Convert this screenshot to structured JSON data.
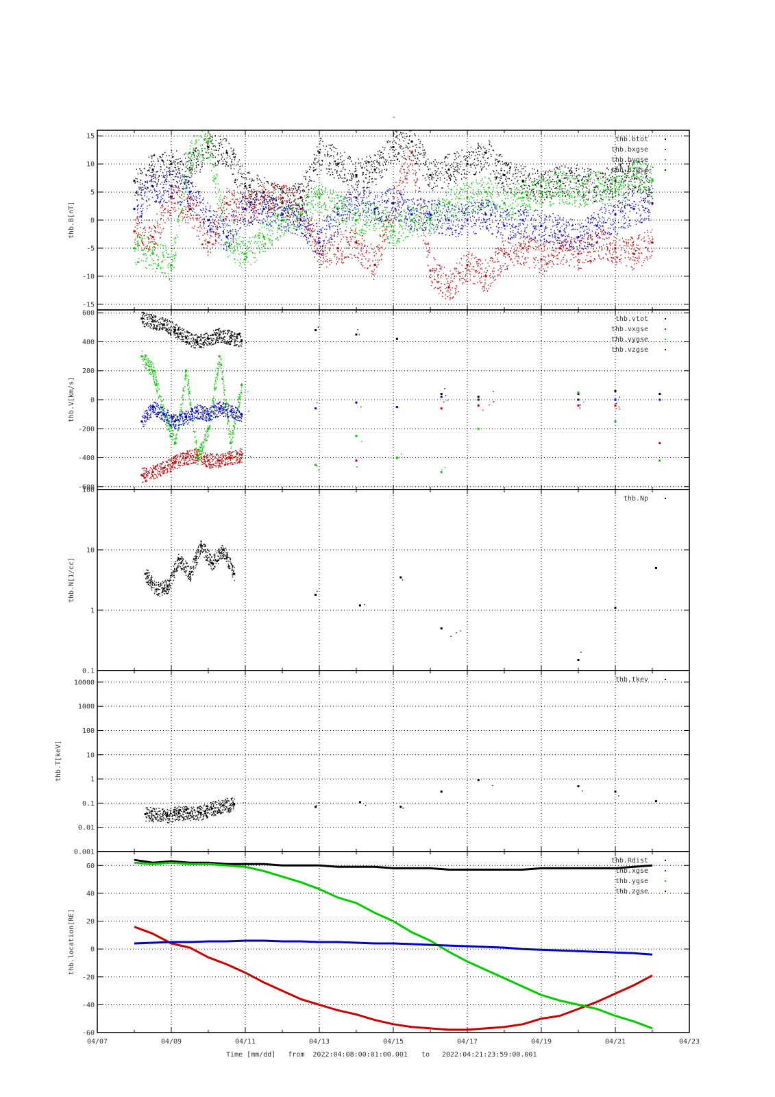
{
  "figure": {
    "title": "-",
    "time_axis": {
      "label": "Time [mm/dd]",
      "from_label": "from",
      "from": "2022:04:08:00:01:00.001",
      "to_label": "to",
      "to": "2022:04:21:23:59:00.001",
      "tick_labels": [
        "04/07",
        "04/09",
        "04/11",
        "04/13",
        "04/15",
        "04/17",
        "04/19",
        "04/21",
        "04/23"
      ]
    }
  },
  "chart_data": [
    {
      "id": "B",
      "type": "scatter",
      "ylabel": "thb.B[nT]",
      "ylim": [
        -16,
        16
      ],
      "yscale": "linear",
      "yticks": [
        -15,
        -10,
        -5,
        0,
        5,
        10,
        15
      ],
      "grid": true,
      "legend": "top-right",
      "x": [
        "04/08",
        "04/08.5",
        "04/09",
        "04/09.5",
        "04/10",
        "04/10.5",
        "04/11",
        "04/11.5",
        "04/12",
        "04/12.5",
        "04/13",
        "04/13.5",
        "04/14",
        "04/14.5",
        "04/15",
        "04/15.5",
        "04/16",
        "04/16.5",
        "04/17",
        "04/17.5",
        "04/18",
        "04/18.5",
        "04/19",
        "04/19.5",
        "04/20",
        "04/20.5",
        "04/21",
        "04/21.5",
        "04/22"
      ],
      "series": [
        {
          "name": "thb.btot",
          "color": "#000000",
          "values": [
            7,
            9,
            10,
            9,
            13,
            12,
            6,
            5,
            3,
            4,
            12,
            10,
            8,
            9,
            13,
            14,
            8,
            9,
            10,
            12,
            8,
            7,
            6,
            7,
            7,
            6,
            7,
            8,
            7
          ]
        },
        {
          "name": "thb.bxgse",
          "color": "#cc0000",
          "values": [
            -2,
            -3,
            4,
            2,
            -4,
            3,
            2,
            4,
            4,
            2,
            -6,
            -5,
            -4,
            -8,
            3,
            12,
            -9,
            -12,
            -8,
            -10,
            -6,
            -5,
            -7,
            -5,
            -6,
            -4,
            -5,
            -6,
            -4
          ]
        },
        {
          "name": "thb.bygse",
          "color": "#00cc00",
          "values": [
            -5,
            -6,
            -8,
            12,
            14,
            -4,
            -6,
            -3,
            0,
            1,
            4,
            2,
            0,
            1,
            -2,
            0,
            0,
            3,
            4,
            5,
            3,
            4,
            5,
            6,
            5,
            6,
            5,
            8,
            7
          ]
        },
        {
          "name": "thb.bzgse",
          "color": "#0000cc",
          "values": [
            2,
            6,
            6,
            5,
            0,
            -3,
            2,
            2,
            1,
            0,
            -4,
            1,
            4,
            2,
            3,
            1,
            1,
            0,
            0,
            1,
            -1,
            0,
            -1,
            -2,
            -3,
            -1,
            1,
            2,
            3
          ]
        }
      ]
    },
    {
      "id": "V",
      "type": "scatter",
      "ylabel": "thb.V[km/s]",
      "ylim": [
        -620,
        620
      ],
      "yscale": "linear",
      "yticks": [
        -600,
        -400,
        -200,
        0,
        200,
        400,
        600
      ],
      "grid": true,
      "legend": "top-right",
      "x": [
        "04/08.2",
        "04/08.5",
        "04/08.8",
        "04/09.1",
        "04/09.4",
        "04/09.7",
        "04/10",
        "04/10.3",
        "04/10.6",
        "04/10.9",
        "04/12.9",
        "04/14.0",
        "04/15.1",
        "04/16.3",
        "04/17.3",
        "04/20.0",
        "04/21.0",
        "04/22.2"
      ],
      "series": [
        {
          "name": "thb.vtot",
          "color": "#000000",
          "values": [
            560,
            540,
            520,
            480,
            430,
            400,
            420,
            450,
            430,
            410,
            480,
            450,
            420,
            40,
            20,
            40,
            60,
            40
          ]
        },
        {
          "name": "thb.vxgse",
          "color": "#cc0000",
          "values": [
            -520,
            -500,
            -470,
            -430,
            -400,
            -380,
            -420,
            -420,
            -400,
            -380,
            -450,
            -420,
            -400,
            -60,
            -40,
            -40,
            -40,
            -300
          ]
        },
        {
          "name": "thb.vygse",
          "color": "#00cc00",
          "values": [
            300,
            200,
            -100,
            -300,
            200,
            -400,
            -200,
            300,
            -300,
            100,
            -450,
            -250,
            -400,
            -500,
            -200,
            50,
            -150,
            -420
          ]
        },
        {
          "name": "thb.vzgse",
          "color": "#0000cc",
          "values": [
            -150,
            -50,
            -100,
            -150,
            -120,
            -80,
            -100,
            -60,
            -80,
            -100,
            -60,
            -20,
            -50,
            20,
            0,
            0,
            0,
            0
          ]
        }
      ]
    },
    {
      "id": "N",
      "type": "scatter",
      "ylabel": "thb.N[1/cc]",
      "ylim": [
        0.1,
        100
      ],
      "yscale": "log",
      "yticks": [
        0.1,
        1,
        10,
        100
      ],
      "ytick_labels": [
        "0.1",
        "1",
        "10",
        "100"
      ],
      "grid": true,
      "legend": "top-right",
      "x": [
        "04/08.3",
        "04/08.6",
        "04/08.9",
        "04/09.2",
        "04/09.5",
        "04/09.8",
        "04/10.1",
        "04/10.4",
        "04/10.7",
        "04/12.9",
        "04/14.1",
        "04/15.2",
        "04/16.3",
        "04/20.0",
        "04/21.0",
        "04/22.1"
      ],
      "series": [
        {
          "name": "thb.Np",
          "color": "#000000",
          "values": [
            4,
            2.2,
            2.5,
            7,
            4,
            12,
            6,
            10,
            4,
            1.8,
            1.2,
            3.5,
            0.5,
            0.15,
            1.1,
            5
          ]
        }
      ]
    },
    {
      "id": "T",
      "type": "scatter",
      "ylabel": "thb.T[keV]",
      "ylim": [
        0.001,
        30000
      ],
      "yscale": "log",
      "yticks": [
        0.001,
        0.01,
        0.1,
        1,
        10,
        100,
        1000,
        10000
      ],
      "ytick_labels": [
        "0.001",
        "0.01",
        "0.1",
        "1",
        "10",
        "100",
        "1000",
        "10000"
      ],
      "grid": true,
      "legend": "top-right",
      "x": [
        "04/08.3",
        "04/08.6",
        "04/08.9",
        "04/09.2",
        "04/09.5",
        "04/09.8",
        "04/10.1",
        "04/10.4",
        "04/10.7",
        "04/12.9",
        "04/14.1",
        "04/15.2",
        "04/16.3",
        "04/17.3",
        "04/20.0",
        "04/21.0",
        "04/22.1"
      ],
      "series": [
        {
          "name": "thb.tkev",
          "color": "#000000",
          "values": [
            0.035,
            0.035,
            0.03,
            0.04,
            0.038,
            0.04,
            0.06,
            0.08,
            0.09,
            0.07,
            0.11,
            0.07,
            0.3,
            0.9,
            0.5,
            0.3,
            0.12
          ]
        }
      ]
    },
    {
      "id": "location",
      "type": "line",
      "ylabel": "thb.location[RE]",
      "ylim": [
        -60,
        70
      ],
      "yscale": "linear",
      "yticks": [
        -60,
        -40,
        -20,
        0,
        20,
        40,
        60
      ],
      "grid": true,
      "legend": "top-right",
      "x": [
        "04/08",
        "04/08.5",
        "04/09",
        "04/09.5",
        "04/10",
        "04/10.5",
        "04/11",
        "04/11.5",
        "04/12",
        "04/12.5",
        "04/13",
        "04/13.5",
        "04/14",
        "04/14.5",
        "04/15",
        "04/15.5",
        "04/16",
        "04/16.5",
        "04/17",
        "04/17.5",
        "04/18",
        "04/18.5",
        "04/19",
        "04/19.5",
        "04/20",
        "04/20.5",
        "04/21",
        "04/21.5",
        "04/22"
      ],
      "series": [
        {
          "name": "thb.Rdist",
          "color": "#000000",
          "values": [
            64,
            62,
            63,
            62,
            62,
            61,
            61,
            61,
            60,
            60,
            60,
            59,
            59,
            59,
            58,
            58,
            58,
            57,
            57,
            57,
            57,
            57,
            58,
            58,
            58,
            58,
            58,
            59,
            60
          ]
        },
        {
          "name": "thb.xgse",
          "color": "#cc0000",
          "values": [
            16,
            11,
            4,
            1,
            -6,
            -11,
            -17,
            -24,
            -30,
            -36,
            -40,
            -44,
            -47,
            -51,
            -54,
            -56,
            -57,
            -58,
            -58,
            -57,
            -56,
            -54,
            -50,
            -48,
            -43,
            -38,
            -32,
            -26,
            -19
          ]
        },
        {
          "name": "thb.ygse",
          "color": "#00cc00",
          "values": [
            62,
            61,
            62,
            61,
            61,
            60,
            59,
            56,
            52,
            48,
            43,
            37,
            33,
            26,
            20,
            12,
            6,
            -2,
            -9,
            -15,
            -21,
            -27,
            -33,
            -37,
            -40,
            -43,
            -48,
            -52,
            -57
          ]
        },
        {
          "name": "thb.zgse",
          "color": "#0000cc",
          "values": [
            4,
            4.5,
            5,
            5,
            5.5,
            5.5,
            6,
            6,
            5.5,
            5.5,
            5,
            5,
            4.5,
            4,
            4,
            3.5,
            3,
            2.5,
            2,
            1.5,
            1,
            0,
            -0.5,
            -1,
            -1.5,
            -2,
            -2.5,
            -3,
            -4
          ]
        }
      ]
    }
  ]
}
